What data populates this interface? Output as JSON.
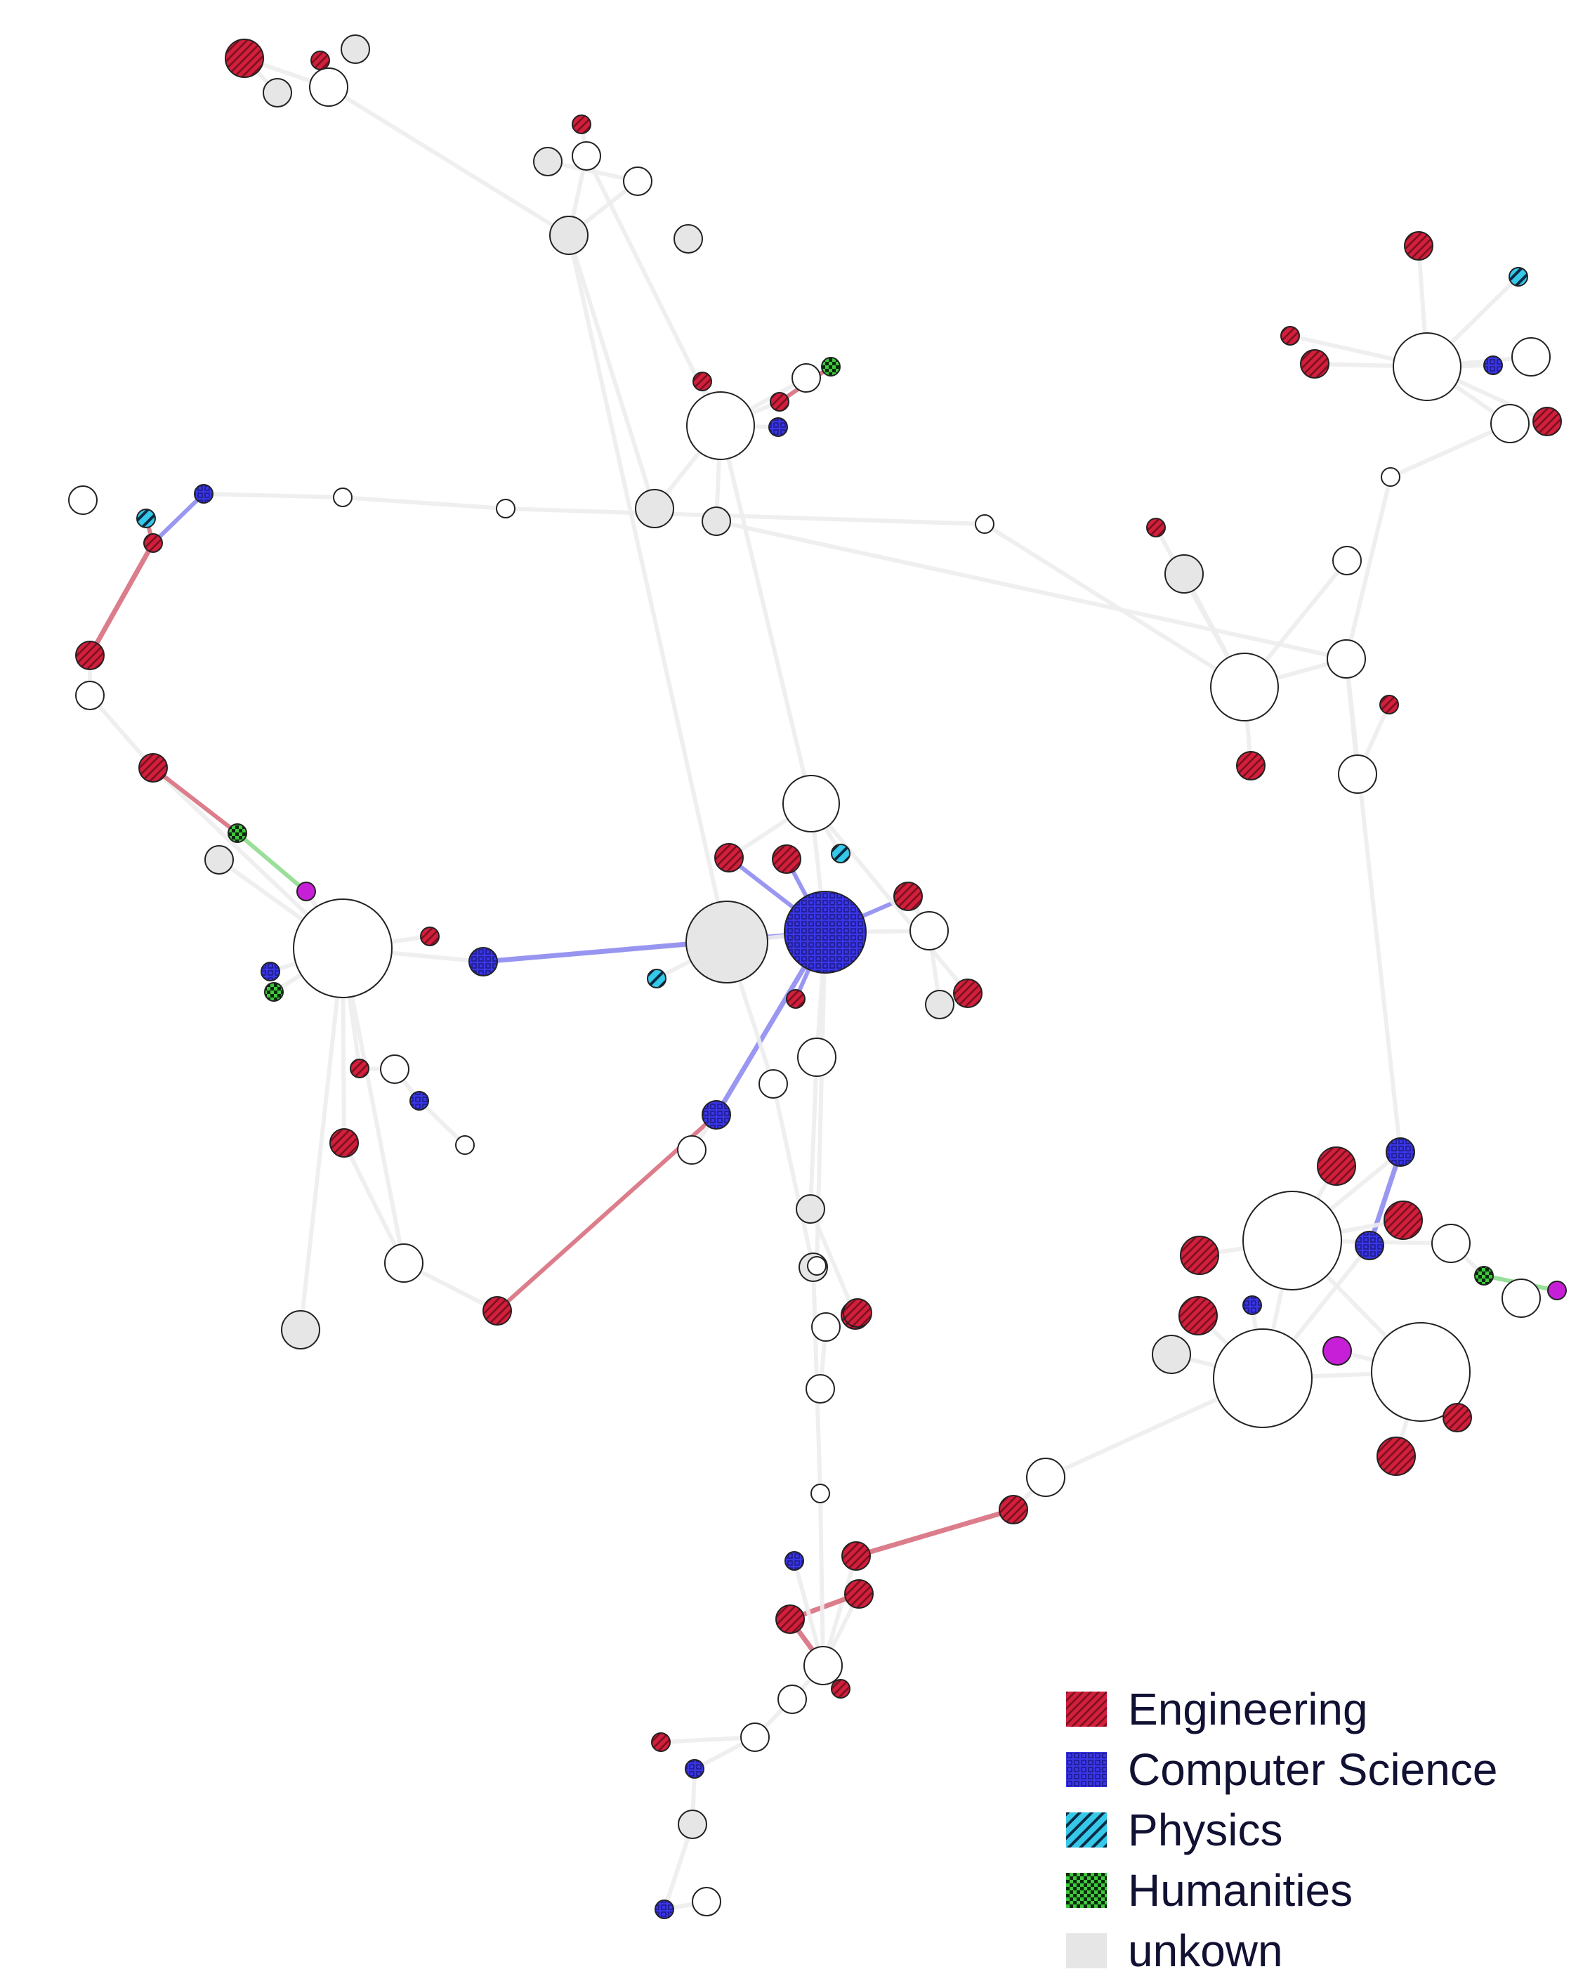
{
  "legend": [
    {
      "label": "Engineering",
      "category": "engineering"
    },
    {
      "label": "Computer Science",
      "category": "cs"
    },
    {
      "label": "Physics",
      "category": "physics"
    },
    {
      "label": "Humanities",
      "category": "humanities"
    },
    {
      "label": "unkown",
      "category": "unknown"
    }
  ],
  "categories": {
    "engineering": {
      "fill": "#d21f3c",
      "stripe": "#5a0a16",
      "edge": "#d9707f"
    },
    "cs": {
      "fill": "#3a36e6",
      "stripe": "#1a1880",
      "edge": "#8e8cf0"
    },
    "physics": {
      "fill": "#36c8e8",
      "stripe": "#0a2a44",
      "edge": "#8fe0ef"
    },
    "humanities": {
      "fill": "#3ec93e",
      "stripe": "#0b2a0b",
      "edge": "#8fdc8f"
    },
    "unknown": {
      "fill": "#e6e6e6",
      "stripe": "#e6e6e6",
      "edge": "#eeeeee"
    },
    "none": {
      "fill": "#ffffff",
      "stripe": "#ffffff",
      "edge": "#eeeeee"
    },
    "magenta": {
      "fill": "#c71fd8",
      "stripe": "#c71fd8",
      "edge": "#e09ae8"
    }
  },
  "nodes": [
    {
      "id": "a1",
      "c": "engineering",
      "s": 3
    },
    {
      "id": "a2",
      "c": "none",
      "s": 3
    },
    {
      "id": "a3",
      "c": "unknown",
      "s": 2
    },
    {
      "id": "a4",
      "c": "engineering",
      "s": 1
    },
    {
      "id": "a5",
      "c": "unknown",
      "s": 2
    },
    {
      "id": "b1",
      "c": "unknown",
      "s": 3
    },
    {
      "id": "b2",
      "c": "none",
      "s": 2
    },
    {
      "id": "b3",
      "c": "engineering",
      "s": 1
    },
    {
      "id": "b4",
      "c": "none",
      "s": 2
    },
    {
      "id": "b5",
      "c": "unknown",
      "s": 2
    },
    {
      "id": "b6",
      "c": "unknown",
      "s": 2
    },
    {
      "id": "c1",
      "c": "none",
      "s": 5
    },
    {
      "id": "c2",
      "c": "engineering",
      "s": 1
    },
    {
      "id": "c3",
      "c": "cs",
      "s": 1
    },
    {
      "id": "c4",
      "c": "none",
      "s": 2
    },
    {
      "id": "c5",
      "c": "engineering",
      "s": 1
    },
    {
      "id": "c6",
      "c": "humanities",
      "s": 1
    },
    {
      "id": "c7",
      "c": "unknown",
      "s": 3
    },
    {
      "id": "c8",
      "c": "unknown",
      "s": 2
    },
    {
      "id": "d1",
      "c": "cs",
      "s": 1
    },
    {
      "id": "d2",
      "c": "engineering",
      "s": 1
    },
    {
      "id": "d3",
      "c": "physics",
      "s": 1
    },
    {
      "id": "d4",
      "c": "none",
      "s": 2
    },
    {
      "id": "d5",
      "c": "none",
      "s": 1
    },
    {
      "id": "e1",
      "c": "engineering",
      "s": 2
    },
    {
      "id": "e2",
      "c": "none",
      "s": 2
    },
    {
      "id": "e3",
      "c": "engineering",
      "s": 2
    },
    {
      "id": "e4",
      "c": "humanities",
      "s": 1
    },
    {
      "id": "e5",
      "c": "magenta",
      "s": 1
    },
    {
      "id": "f1",
      "c": "none",
      "s": 7
    },
    {
      "id": "f2",
      "c": "cs",
      "s": 2
    },
    {
      "id": "f3",
      "c": "engineering",
      "s": 1
    },
    {
      "id": "f4",
      "c": "cs",
      "s": 1
    },
    {
      "id": "f5",
      "c": "humanities",
      "s": 1
    },
    {
      "id": "f6",
      "c": "engineering",
      "s": 1
    },
    {
      "id": "f7",
      "c": "none",
      "s": 2
    },
    {
      "id": "f8",
      "c": "cs",
      "s": 1
    },
    {
      "id": "f9",
      "c": "engineering",
      "s": 2
    },
    {
      "id": "f10",
      "c": "none",
      "s": 3
    },
    {
      "id": "f11",
      "c": "unknown",
      "s": 3
    },
    {
      "id": "f12",
      "c": "none",
      "s": 1
    },
    {
      "id": "f13",
      "c": "engineering",
      "s": 2
    },
    {
      "id": "f14",
      "c": "unknown",
      "s": 2
    },
    {
      "id": "g1",
      "c": "unknown",
      "s": 6
    },
    {
      "id": "g2",
      "c": "cs",
      "s": 6
    },
    {
      "id": "g3",
      "c": "none",
      "s": 4
    },
    {
      "id": "g4",
      "c": "engineering",
      "s": 2
    },
    {
      "id": "g5",
      "c": "engineering",
      "s": 2
    },
    {
      "id": "g6",
      "c": "physics",
      "s": 1
    },
    {
      "id": "g7",
      "c": "engineering",
      "s": 2
    },
    {
      "id": "g8",
      "c": "none",
      "s": 3
    },
    {
      "id": "g9",
      "c": "engineering",
      "s": 2
    },
    {
      "id": "g10",
      "c": "none",
      "s": 3
    },
    {
      "id": "g11",
      "c": "cs",
      "s": 2
    },
    {
      "id": "g12",
      "c": "physics",
      "s": 1
    },
    {
      "id": "g13",
      "c": "none",
      "s": 2
    },
    {
      "id": "g14",
      "c": "unknown",
      "s": 2
    },
    {
      "id": "g15",
      "c": "none",
      "s": 2
    },
    {
      "id": "h1",
      "c": "none",
      "s": 5
    },
    {
      "id": "h2",
      "c": "none",
      "s": 3
    },
    {
      "id": "h3",
      "c": "engineering",
      "s": 1
    },
    {
      "id": "h4",
      "c": "engineering",
      "s": 2
    },
    {
      "id": "h5",
      "c": "none",
      "s": 3
    },
    {
      "id": "h6",
      "c": "unknown",
      "s": 3
    },
    {
      "id": "h7",
      "c": "engineering",
      "s": 1
    },
    {
      "id": "i1",
      "c": "none",
      "s": 5
    },
    {
      "id": "i2",
      "c": "engineering",
      "s": 2
    },
    {
      "id": "i3",
      "c": "engineering",
      "s": 2
    },
    {
      "id": "i4",
      "c": "cs",
      "s": 1
    },
    {
      "id": "i5",
      "c": "physics",
      "s": 1
    },
    {
      "id": "i6",
      "c": "none",
      "s": 3
    },
    {
      "id": "i7",
      "c": "engineering",
      "s": 2
    },
    {
      "id": "i8",
      "c": "none",
      "s": 3
    },
    {
      "id": "i9",
      "c": "engineering",
      "s": 1
    },
    {
      "id": "j1",
      "c": "none",
      "s": 7
    },
    {
      "id": "j2",
      "c": "none",
      "s": 7
    },
    {
      "id": "j3",
      "c": "none",
      "s": 7
    },
    {
      "id": "j4",
      "c": "cs",
      "s": 2
    },
    {
      "id": "j5",
      "c": "engineering",
      "s": 3
    },
    {
      "id": "j6",
      "c": "engineering",
      "s": 3
    },
    {
      "id": "j7",
      "c": "engineering",
      "s": 3
    },
    {
      "id": "j8",
      "c": "cs",
      "s": 2
    },
    {
      "id": "j9",
      "c": "magenta",
      "s": 2
    },
    {
      "id": "j10",
      "c": "engineering",
      "s": 3
    },
    {
      "id": "j11",
      "c": "none",
      "s": 3
    },
    {
      "id": "j12",
      "c": "humanities",
      "s": 1
    },
    {
      "id": "j13",
      "c": "magenta",
      "s": 1
    },
    {
      "id": "j14",
      "c": "none",
      "s": 3
    },
    {
      "id": "j15",
      "c": "engineering",
      "s": 2
    },
    {
      "id": "j16",
      "c": "cs",
      "s": 1
    },
    {
      "id": "j17",
      "c": "engineering",
      "s": 3
    },
    {
      "id": "j18",
      "c": "unknown",
      "s": 3
    },
    {
      "id": "k1",
      "c": "none",
      "s": 3
    },
    {
      "id": "k2",
      "c": "engineering",
      "s": 2
    },
    {
      "id": "k3",
      "c": "cs",
      "s": 1
    },
    {
      "id": "k4",
      "c": "engineering",
      "s": 2
    },
    {
      "id": "k5",
      "c": "none",
      "s": 3
    },
    {
      "id": "k6",
      "c": "engineering",
      "s": 2
    },
    {
      "id": "k7",
      "c": "engineering",
      "s": 2
    },
    {
      "id": "k8",
      "c": "engineering",
      "s": 1
    },
    {
      "id": "k9",
      "c": "none",
      "s": 2
    },
    {
      "id": "l1",
      "c": "cs",
      "s": 1
    },
    {
      "id": "l2",
      "c": "none",
      "s": 2
    },
    {
      "id": "l3",
      "c": "unknown",
      "s": 2
    },
    {
      "id": "l4",
      "c": "cs",
      "s": 1
    },
    {
      "id": "l5",
      "c": "none",
      "s": 2
    },
    {
      "id": "l6",
      "c": "engineering",
      "s": 1
    },
    {
      "id": "m1",
      "c": "engineering",
      "s": 2
    },
    {
      "id": "m2",
      "c": "none",
      "s": 2
    },
    {
      "id": "m3",
      "c": "engineering",
      "s": 2
    },
    {
      "id": "m4",
      "c": "none",
      "s": 2
    },
    {
      "id": "m5",
      "c": "unknown",
      "s": 2
    },
    {
      "id": "n1",
      "c": "engineering",
      "s": 1
    },
    {
      "id": "n2",
      "c": "unknown",
      "s": 2
    },
    {
      "id": "n3",
      "c": "none",
      "s": 1
    },
    {
      "id": "n4",
      "c": "none",
      "s": 1
    },
    {
      "id": "n5",
      "c": "none",
      "s": 1
    },
    {
      "id": "n6",
      "c": "none",
      "s": 1
    },
    {
      "id": "n7",
      "c": "none",
      "s": 2
    },
    {
      "id": "n8",
      "c": "none",
      "s": 1
    }
  ],
  "edges": [
    [
      "a1",
      "a2"
    ],
    [
      "a2",
      "a4"
    ],
    [
      "a2",
      "b1"
    ],
    [
      "a1",
      "a3"
    ],
    [
      "b1",
      "b2"
    ],
    [
      "b2",
      "b3"
    ],
    [
      "b1",
      "b4"
    ],
    [
      "b4",
      "b5"
    ],
    [
      "b1",
      "c7"
    ],
    [
      "b2",
      "c1"
    ],
    [
      "b1",
      "g1"
    ],
    [
      "c1",
      "c2"
    ],
    [
      "c1",
      "c3"
    ],
    [
      "c1",
      "c4"
    ],
    [
      "c1",
      "c5"
    ],
    [
      "c5",
      "c6"
    ],
    [
      "c1",
      "c8"
    ],
    [
      "c1",
      "c7"
    ],
    [
      "c1",
      "g3"
    ],
    [
      "c8",
      "h2"
    ],
    [
      "d1",
      "d5"
    ],
    [
      "d1",
      "d2"
    ],
    [
      "d2",
      "d3"
    ],
    [
      "d5",
      "n6"
    ],
    [
      "n6",
      "n4"
    ],
    [
      "n4",
      "h1"
    ],
    [
      "d2",
      "e1"
    ],
    [
      "e1",
      "e2"
    ],
    [
      "e2",
      "e3"
    ],
    [
      "e3",
      "f1"
    ],
    [
      "e3",
      "e4"
    ],
    [
      "e4",
      "e5"
    ],
    [
      "e5",
      "f1"
    ],
    [
      "f1",
      "f2"
    ],
    [
      "f1",
      "f3"
    ],
    [
      "f1",
      "f4"
    ],
    [
      "f1",
      "f5"
    ],
    [
      "f1",
      "f6"
    ],
    [
      "f1",
      "f9"
    ],
    [
      "f1",
      "f10"
    ],
    [
      "f1",
      "f11"
    ],
    [
      "f6",
      "f7"
    ],
    [
      "f7",
      "f8"
    ],
    [
      "f8",
      "f12"
    ],
    [
      "f2",
      "g1"
    ],
    [
      "f2",
      "g2"
    ],
    [
      "f9",
      "f10"
    ],
    [
      "f10",
      "f13"
    ],
    [
      "f13",
      "g11"
    ],
    [
      "f1",
      "f14"
    ],
    [
      "g1",
      "g2"
    ],
    [
      "g2",
      "g3"
    ],
    [
      "g2",
      "g4"
    ],
    [
      "g2",
      "g5"
    ],
    [
      "g2",
      "g7"
    ],
    [
      "g2",
      "g8"
    ],
    [
      "g2",
      "g10"
    ],
    [
      "g2",
      "g11"
    ],
    [
      "g3",
      "g6"
    ],
    [
      "g3",
      "g9"
    ],
    [
      "g7",
      "g8"
    ],
    [
      "g4",
      "g3"
    ],
    [
      "g11",
      "g15"
    ],
    [
      "g1",
      "g12"
    ],
    [
      "g1",
      "g13"
    ],
    [
      "g8",
      "g14"
    ],
    [
      "g2",
      "n1"
    ],
    [
      "h1",
      "h2"
    ],
    [
      "h1",
      "h3"
    ],
    [
      "h1",
      "h4"
    ],
    [
      "h2",
      "h5"
    ],
    [
      "h1",
      "h6"
    ],
    [
      "h5",
      "h7"
    ],
    [
      "h2",
      "j4"
    ],
    [
      "h1",
      "n7"
    ],
    [
      "i1",
      "i2"
    ],
    [
      "i1",
      "i3"
    ],
    [
      "i1",
      "i4"
    ],
    [
      "i1",
      "i5"
    ],
    [
      "i1",
      "i6"
    ],
    [
      "i1",
      "i7"
    ],
    [
      "i1",
      "i8"
    ],
    [
      "i1",
      "i9"
    ],
    [
      "i6",
      "n8"
    ],
    [
      "n8",
      "h2"
    ],
    [
      "j1",
      "j2"
    ],
    [
      "j1",
      "j3"
    ],
    [
      "j1",
      "j4"
    ],
    [
      "j1",
      "j5"
    ],
    [
      "j1",
      "j6"
    ],
    [
      "j2",
      "j7"
    ],
    [
      "j2",
      "j8"
    ],
    [
      "j3",
      "j9"
    ],
    [
      "j3",
      "j10"
    ],
    [
      "j1",
      "j11"
    ],
    [
      "j11",
      "j12"
    ],
    [
      "j12",
      "j13"
    ],
    [
      "j4",
      "j8"
    ],
    [
      "j2",
      "j3"
    ],
    [
      "j3",
      "j15"
    ],
    [
      "j2",
      "j16"
    ],
    [
      "j1",
      "j17"
    ],
    [
      "j2",
      "j18"
    ],
    [
      "j2",
      "k1"
    ],
    [
      "k1",
      "k2"
    ],
    [
      "k2",
      "k4"
    ],
    [
      "k4",
      "k5"
    ],
    [
      "k5",
      "k6"
    ],
    [
      "k6",
      "k7"
    ],
    [
      "k5",
      "k3"
    ],
    [
      "k7",
      "k8"
    ],
    [
      "k5",
      "k9"
    ],
    [
      "k9",
      "l2"
    ],
    [
      "l2",
      "l1"
    ],
    [
      "l1",
      "l3"
    ],
    [
      "l3",
      "l4"
    ],
    [
      "l4",
      "l5"
    ],
    [
      "l2",
      "l6"
    ],
    [
      "g10",
      "m5"
    ],
    [
      "m5",
      "m1"
    ],
    [
      "m1",
      "m2"
    ],
    [
      "m1",
      "m3"
    ],
    [
      "m2",
      "m4"
    ],
    [
      "g13",
      "n2"
    ],
    [
      "n2",
      "n3"
    ],
    [
      "n3",
      "k5"
    ],
    [
      "g2",
      "n5"
    ]
  ]
}
